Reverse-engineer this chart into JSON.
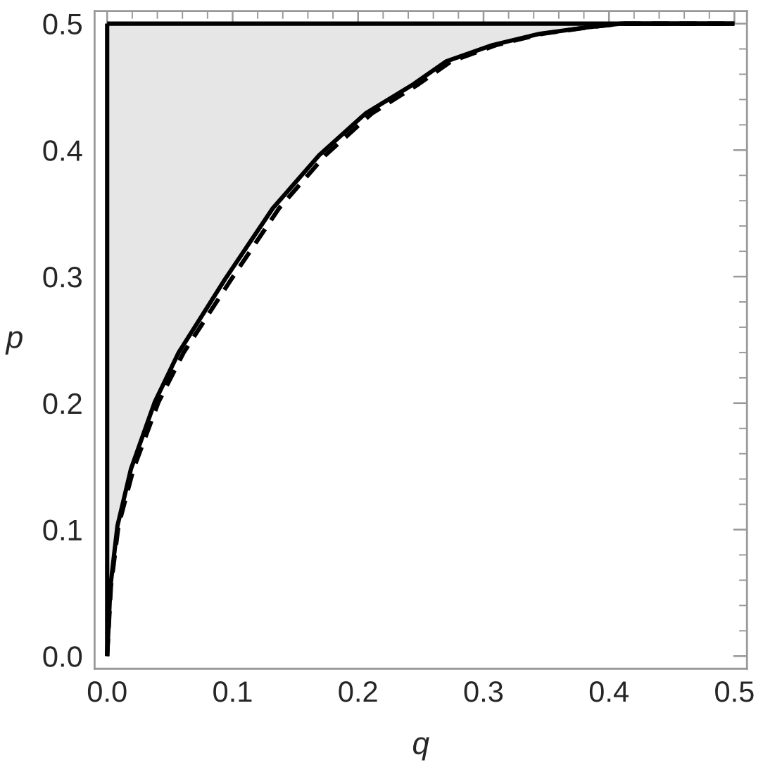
{
  "chart_data": {
    "type": "line",
    "xlabel": "q",
    "ylabel": "p",
    "xlim": [
      -0.01,
      0.51
    ],
    "ylim": [
      -0.01,
      0.51
    ],
    "xticks": [
      {
        "value": 0,
        "label": "0.0"
      },
      {
        "value": 0.02,
        "label": null
      },
      {
        "value": 0.04,
        "label": null
      },
      {
        "value": 0.06,
        "label": null
      },
      {
        "value": 0.08,
        "label": null
      },
      {
        "value": 0.1,
        "label": "0.1"
      },
      {
        "value": 0.12,
        "label": null
      },
      {
        "value": 0.14,
        "label": null
      },
      {
        "value": 0.16,
        "label": null
      },
      {
        "value": 0.18,
        "label": null
      },
      {
        "value": 0.2,
        "label": "0.2"
      },
      {
        "value": 0.22,
        "label": null
      },
      {
        "value": 0.24,
        "label": null
      },
      {
        "value": 0.26,
        "label": null
      },
      {
        "value": 0.28,
        "label": null
      },
      {
        "value": 0.3,
        "label": "0.3"
      },
      {
        "value": 0.32,
        "label": null
      },
      {
        "value": 0.34,
        "label": null
      },
      {
        "value": 0.36,
        "label": null
      },
      {
        "value": 0.38,
        "label": null
      },
      {
        "value": 0.4,
        "label": "0.4"
      },
      {
        "value": 0.42,
        "label": null
      },
      {
        "value": 0.44,
        "label": null
      },
      {
        "value": 0.46,
        "label": null
      },
      {
        "value": 0.48,
        "label": null
      },
      {
        "value": 0.5,
        "label": "0.5"
      }
    ],
    "yticks": [
      {
        "value": 0,
        "label": "0.0"
      },
      {
        "value": 0.02,
        "label": null
      },
      {
        "value": 0.04,
        "label": null
      },
      {
        "value": 0.06,
        "label": null
      },
      {
        "value": 0.08,
        "label": null
      },
      {
        "value": 0.1,
        "label": "0.1"
      },
      {
        "value": 0.12,
        "label": null
      },
      {
        "value": 0.14,
        "label": null
      },
      {
        "value": 0.16,
        "label": null
      },
      {
        "value": 0.18,
        "label": null
      },
      {
        "value": 0.2,
        "label": "0.2"
      },
      {
        "value": 0.22,
        "label": null
      },
      {
        "value": 0.24,
        "label": null
      },
      {
        "value": 0.26,
        "label": null
      },
      {
        "value": 0.28,
        "label": null
      },
      {
        "value": 0.3,
        "label": "0.3"
      },
      {
        "value": 0.32,
        "label": null
      },
      {
        "value": 0.34,
        "label": null
      },
      {
        "value": 0.36,
        "label": null
      },
      {
        "value": 0.38,
        "label": null
      },
      {
        "value": 0.4,
        "label": "0.4"
      },
      {
        "value": 0.42,
        "label": null
      },
      {
        "value": 0.44,
        "label": null
      },
      {
        "value": 0.46,
        "label": null
      },
      {
        "value": 0.48,
        "label": null
      },
      {
        "value": 0.5,
        "label": "0.5"
      }
    ],
    "grid": false,
    "legend": false,
    "marker": "none",
    "series": [
      {
        "color": "#000000",
        "line_style": "dashed",
        "x": [
          0,
          0.003,
          0.009,
          0.021,
          0.041,
          0.061,
          0.099,
          0.137,
          0.174,
          0.211,
          0.248,
          0.274,
          0.31,
          0.347,
          0.383,
          0.41,
          0.5
        ],
        "values": [
          0,
          0.055,
          0.103,
          0.148,
          0.201,
          0.24,
          0.298,
          0.354,
          0.396,
          0.429,
          0.452,
          0.47,
          0.483,
          0.492,
          0.497,
          0.5,
          0.5
        ]
      },
      {
        "color": "#000000",
        "line_style": "solid",
        "x": [
          0,
          0.0026,
          0.0082,
          0.019,
          0.038,
          0.057,
          0.094,
          0.132,
          0.169,
          0.206,
          0.244,
          0.27,
          0.307,
          0.345,
          0.382,
          0.41,
          0.5
        ],
        "values": [
          0,
          0.055,
          0.103,
          0.148,
          0.201,
          0.24,
          0.298,
          0.354,
          0.396,
          0.429,
          0.452,
          0.47,
          0.483,
          0.492,
          0.497,
          0.5,
          0.5
        ],
        "lower": [
          0,
          0.055,
          0.103,
          0.148,
          0.201,
          0.24,
          0.298,
          0.354,
          0.396,
          0.429,
          0.452,
          0.47,
          0.483,
          0.492,
          0.497,
          0.5,
          0.5
        ],
        "upper": [
          0.5,
          0.5,
          0.5,
          0.5,
          0.5,
          0.5,
          0.5,
          0.5,
          0.5,
          0.5,
          0.5,
          0.5,
          0.5,
          0.5,
          0.5,
          0.5,
          0.5
        ]
      },
      {
        "color": "#000000",
        "line_style": "solid",
        "x": [
          0,
          0
        ],
        "values": [
          0,
          0.5
        ]
      },
      {
        "color": "#000000",
        "line_style": "solid",
        "x": [
          0,
          0.5
        ],
        "values": [
          0.5,
          0.5
        ]
      }
    ]
  }
}
